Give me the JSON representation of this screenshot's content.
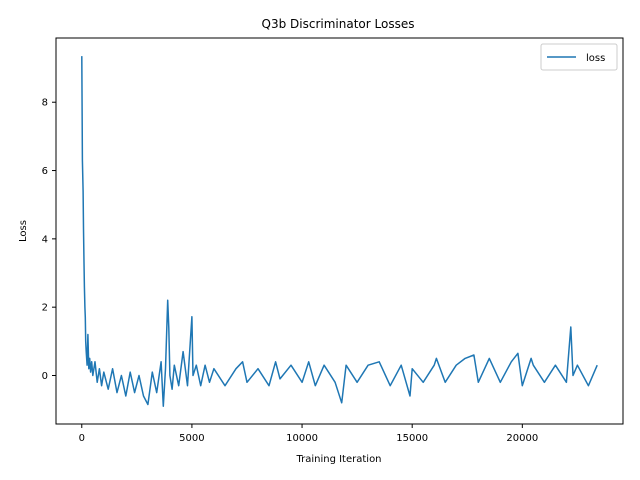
{
  "chart_data": {
    "type": "line",
    "title": "Q3b Discriminator Losses",
    "xlabel": "Training Iteration",
    "ylabel": "Loss",
    "xlim": [
      -1170,
      24570
    ],
    "ylim": [
      -1.42,
      9.88
    ],
    "xticks": [
      0,
      5000,
      10000,
      15000,
      20000
    ],
    "xtick_labels": [
      "0",
      "5000",
      "10000",
      "15000",
      "20000"
    ],
    "yticks": [
      0,
      2,
      4,
      6,
      8
    ],
    "ytick_labels": [
      "0",
      "2",
      "4",
      "6",
      "8"
    ],
    "grid": false,
    "legend": {
      "placement": "top-right",
      "entries": [
        "loss"
      ]
    },
    "series": [
      {
        "name": "loss",
        "color": "#1f77b4",
        "x": [
          0,
          30,
          60,
          80,
          100,
          120,
          140,
          160,
          180,
          200,
          240,
          280,
          320,
          360,
          400,
          450,
          500,
          600,
          700,
          800,
          900,
          1000,
          1200,
          1400,
          1600,
          1800,
          2000,
          2200,
          2400,
          2600,
          2800,
          3000,
          3200,
          3400,
          3600,
          3700,
          3800,
          3900,
          3950,
          4000,
          4100,
          4200,
          4400,
          4600,
          4800,
          5000,
          5050,
          5200,
          5400,
          5600,
          5800,
          6000,
          6500,
          7000,
          7300,
          7500,
          8000,
          8500,
          8800,
          9000,
          9500,
          10000,
          10300,
          10600,
          11000,
          11500,
          11800,
          12000,
          12500,
          13000,
          13500,
          14000,
          14500,
          14900,
          15000,
          15500,
          16000,
          16100,
          16500,
          17000,
          17400,
          17800,
          18000,
          18500,
          19000,
          19500,
          19800,
          20000,
          20400,
          20500,
          21000,
          21500,
          22000,
          22200,
          22300,
          22500,
          23000,
          23400
        ],
        "y": [
          9.35,
          6.3,
          5.4,
          4.3,
          3.3,
          2.6,
          2.0,
          1.7,
          1.0,
          0.7,
          0.3,
          1.2,
          0.2,
          0.5,
          0.1,
          0.4,
          0.0,
          0.4,
          -0.2,
          0.2,
          -0.3,
          0.1,
          -0.4,
          0.2,
          -0.5,
          0.0,
          -0.6,
          0.1,
          -0.5,
          0.0,
          -0.6,
          -0.85,
          0.1,
          -0.5,
          0.4,
          -0.9,
          0.2,
          2.2,
          1.4,
          0.0,
          -0.4,
          0.3,
          -0.3,
          0.7,
          -0.3,
          1.72,
          0.0,
          0.3,
          -0.3,
          0.3,
          -0.2,
          0.2,
          -0.3,
          0.2,
          0.4,
          -0.2,
          0.2,
          -0.3,
          0.4,
          -0.1,
          0.3,
          -0.2,
          0.4,
          -0.3,
          0.3,
          -0.2,
          -0.8,
          0.3,
          -0.2,
          0.3,
          0.4,
          -0.3,
          0.3,
          -0.6,
          0.2,
          -0.2,
          0.3,
          0.5,
          -0.2,
          0.3,
          0.5,
          0.6,
          -0.2,
          0.5,
          -0.2,
          0.4,
          0.65,
          -0.3,
          0.5,
          0.3,
          -0.2,
          0.3,
          -0.2,
          1.42,
          0.0,
          0.3,
          -0.3,
          0.3
        ]
      }
    ]
  }
}
